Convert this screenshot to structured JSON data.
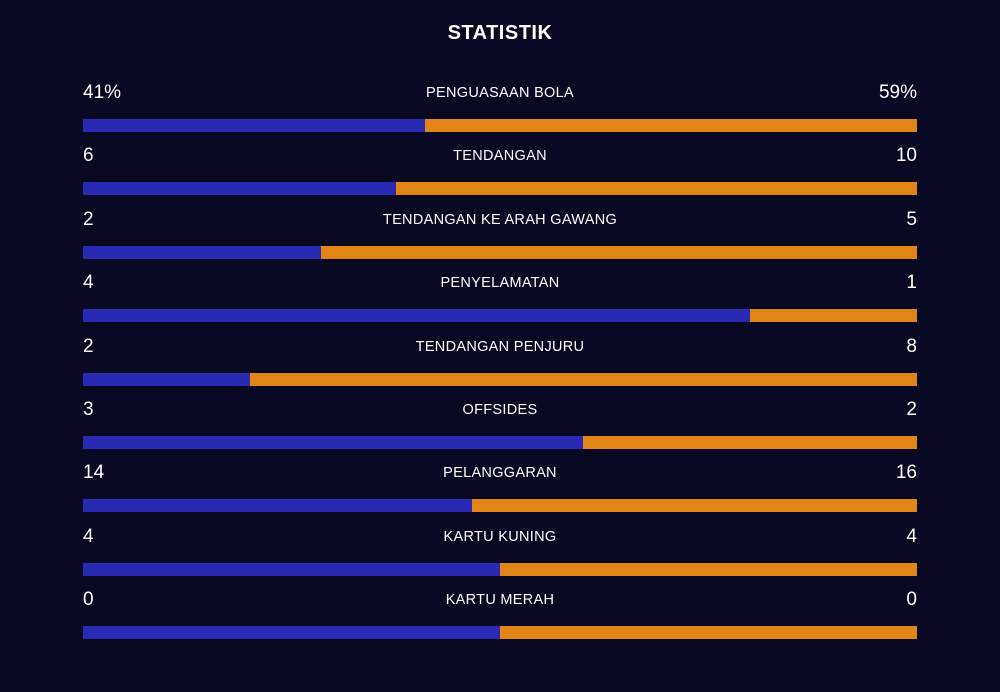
{
  "title": "STATISTIK",
  "colors": {
    "background": "#080822",
    "home": "#2a29b4",
    "away": "#e08516"
  },
  "stats": [
    {
      "label": "PENGUASAAN BOLA",
      "left": "41%",
      "right": "59%",
      "left_value": 41,
      "right_value": 59
    },
    {
      "label": "TENDANGAN",
      "left": "6",
      "right": "10",
      "left_value": 6,
      "right_value": 10
    },
    {
      "label": "TENDANGAN KE ARAH GAWANG",
      "left": "2",
      "right": "5",
      "left_value": 2,
      "right_value": 5
    },
    {
      "label": "PENYELAMATAN",
      "left": "4",
      "right": "1",
      "left_value": 4,
      "right_value": 1
    },
    {
      "label": "TENDANGAN PENJURU",
      "left": "2",
      "right": "8",
      "left_value": 2,
      "right_value": 8
    },
    {
      "label": "OFFSIDES",
      "left": "3",
      "right": "2",
      "left_value": 3,
      "right_value": 2
    },
    {
      "label": "PELANGGARAN",
      "left": "14",
      "right": "16",
      "left_value": 14,
      "right_value": 16
    },
    {
      "label": "KARTU KUNING",
      "left": "4",
      "right": "4",
      "left_value": 4,
      "right_value": 4
    },
    {
      "label": "KARTU MERAH",
      "left": "0",
      "right": "0",
      "left_value": 0,
      "right_value": 0
    }
  ]
}
